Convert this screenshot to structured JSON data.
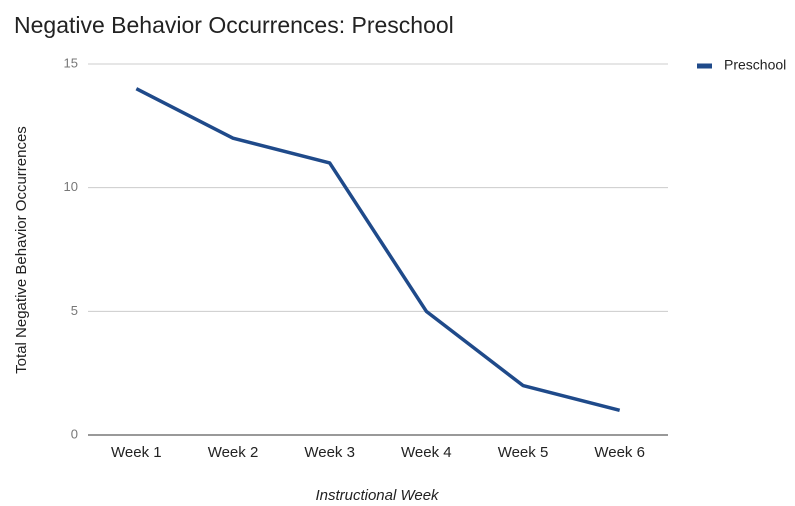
{
  "chart_data": {
    "type": "line",
    "title": "Negative Behavior Occurrences: Preschool",
    "x_label": "Instructional Week",
    "y_label": "Total Negative Behavior Occurrences",
    "categories": [
      "Week 1",
      "Week 2",
      "Week 3",
      "Week 4",
      "Week 5",
      "Week 6"
    ],
    "series": [
      {
        "name": "Preschool",
        "color": "#1f4a8a",
        "values": [
          14,
          12,
          11,
          5,
          2,
          1
        ]
      }
    ],
    "ylim": [
      0,
      15
    ],
    "yticks": [
      0,
      5,
      10,
      15
    ],
    "grid": true,
    "legend": "right"
  }
}
